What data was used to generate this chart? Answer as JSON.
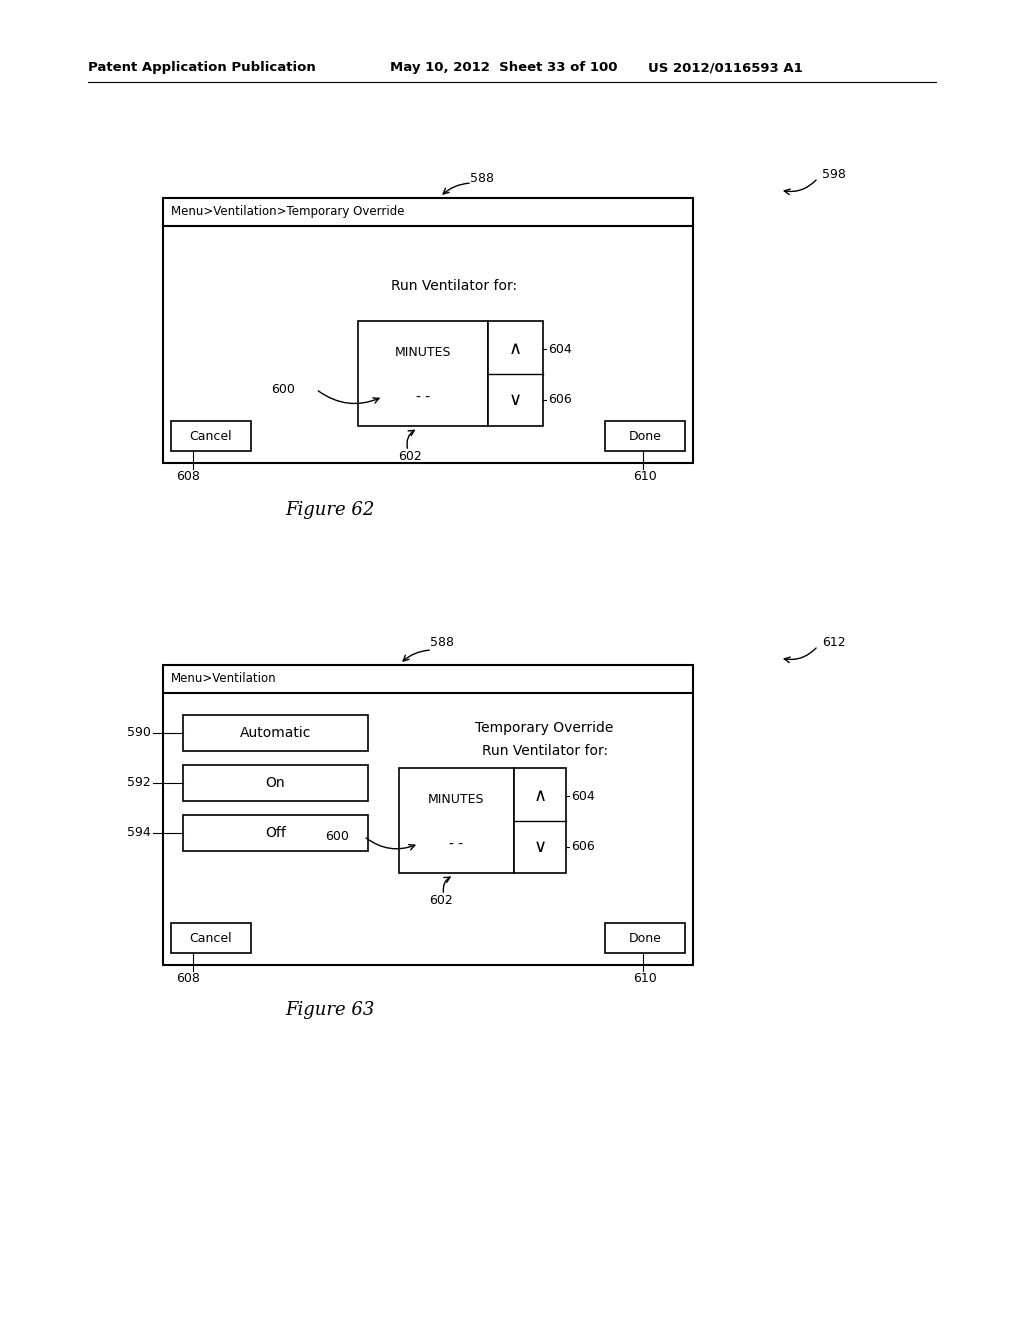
{
  "bg_color": "#ffffff",
  "header_text_left": "Patent Application Publication",
  "header_text_mid": "May 10, 2012  Sheet 33 of 100",
  "header_text_right": "US 2012/0116593 A1",
  "fig62_label": "Figure 62",
  "fig63_label": "Figure 63",
  "fig62": {
    "ref_num": "598",
    "screen_ref": "588",
    "title_bar": "Menu>Ventilation>Temporary Override",
    "body_text": "Run Ventilator for:",
    "minutes_label": "MINUTES",
    "dashes": "- -",
    "up_arrow": "∧",
    "down_arrow": "∨",
    "cancel_text": "Cancel",
    "done_text": "Done",
    "ref_600": "600",
    "ref_602": "602",
    "ref_604": "604",
    "ref_606": "606",
    "ref_608": "608",
    "ref_610": "610"
  },
  "fig63": {
    "ref_num": "612",
    "screen_ref": "588",
    "title_bar": "Menu>Ventilation",
    "override_text1": "Temporary Override",
    "override_text2": "Run Ventilator for:",
    "btn_automatic": "Automatic",
    "btn_on": "On",
    "btn_off": "Off",
    "minutes_label": "MINUTES",
    "dashes": "- -",
    "up_arrow": "∧",
    "down_arrow": "∨",
    "cancel_text": "Cancel",
    "done_text": "Done",
    "ref_590": "590",
    "ref_592": "592",
    "ref_594": "594",
    "ref_600": "600",
    "ref_602": "602",
    "ref_604": "604",
    "ref_606": "606",
    "ref_608": "608",
    "ref_610": "610"
  }
}
